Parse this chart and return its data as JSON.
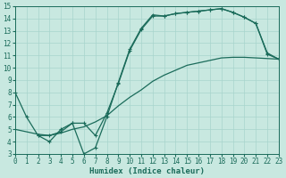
{
  "background_color": "#c8e8e0",
  "grid_color": "#a8d4cc",
  "line_color": "#1a6b5a",
  "xlabel": "Humidex (Indice chaleur)",
  "xlim": [
    0,
    23
  ],
  "ylim": [
    3,
    15
  ],
  "xticks": [
    0,
    1,
    2,
    3,
    4,
    5,
    6,
    7,
    8,
    9,
    10,
    11,
    12,
    13,
    14,
    15,
    16,
    17,
    18,
    19,
    20,
    21,
    22,
    23
  ],
  "yticks": [
    3,
    4,
    5,
    6,
    7,
    8,
    9,
    10,
    11,
    12,
    13,
    14,
    15
  ],
  "line1_x": [
    0,
    1,
    2,
    3,
    4,
    5,
    6,
    7,
    8,
    9,
    10,
    11,
    12,
    13,
    14,
    15,
    16,
    17,
    18,
    19,
    20,
    21,
    22,
    23
  ],
  "line1_y": [
    8,
    6,
    4.5,
    4,
    5,
    5.5,
    3.0,
    3.5,
    6.0,
    8.8,
    11.5,
    13.2,
    14.3,
    14.2,
    14.4,
    14.5,
    14.6,
    14.7,
    14.8,
    14.5,
    14.1,
    13.6,
    11.1,
    10.7
  ],
  "line2_x": [
    2,
    3,
    4,
    5,
    6,
    7,
    8,
    9,
    10,
    11,
    12,
    13,
    14,
    15,
    16,
    17,
    18,
    19,
    20,
    21,
    22,
    23
  ],
  "line2_y": [
    4.5,
    4.5,
    4.8,
    5.5,
    5.5,
    4.5,
    6.3,
    8.7,
    11.4,
    13.1,
    14.2,
    14.2,
    14.4,
    14.5,
    14.6,
    14.7,
    14.8,
    14.5,
    14.1,
    13.6,
    11.2,
    10.7
  ],
  "line3_x": [
    0,
    1,
    2,
    3,
    4,
    5,
    6,
    7,
    8,
    9,
    10,
    11,
    12,
    13,
    14,
    15,
    16,
    17,
    18,
    19,
    20,
    21,
    22,
    23
  ],
  "line3_y": [
    5.0,
    4.8,
    4.6,
    4.5,
    4.7,
    5.0,
    5.2,
    5.6,
    6.1,
    6.9,
    7.6,
    8.2,
    8.9,
    9.4,
    9.8,
    10.2,
    10.4,
    10.6,
    10.8,
    10.85,
    10.85,
    10.8,
    10.75,
    10.7
  ],
  "tick_fontsize": 5.5,
  "xlabel_fontsize": 6.5,
  "linewidth": 0.9,
  "markersize": 3.5
}
